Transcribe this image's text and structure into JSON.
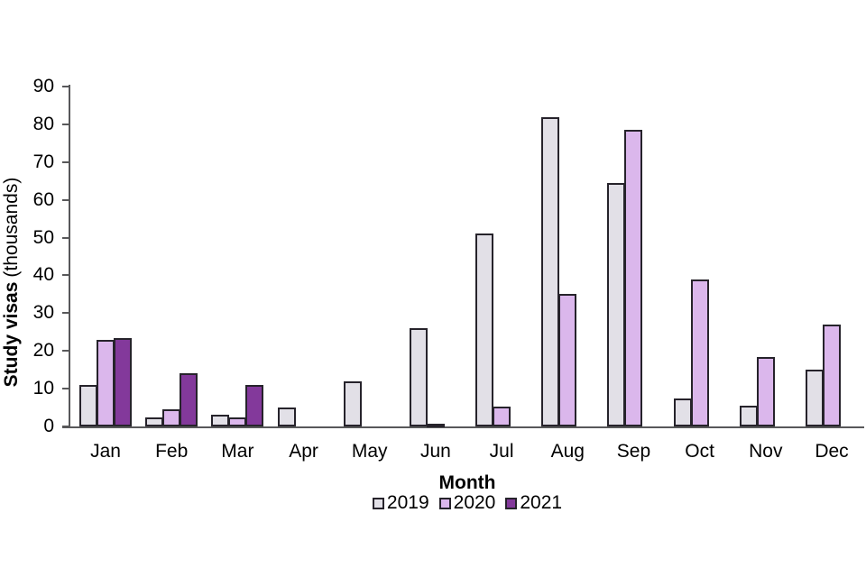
{
  "chart_data": {
    "type": "bar",
    "title": "",
    "categories": [
      "Jan",
      "Feb",
      "Mar",
      "Apr",
      "May",
      "Jun",
      "Jul",
      "Aug",
      "Sep",
      "Oct",
      "Nov",
      "Dec"
    ],
    "series": [
      {
        "name": "2019",
        "color": "#e2e0e7",
        "values": [
          11,
          2.5,
          3,
          5,
          12,
          26,
          51,
          82,
          64.5,
          7.5,
          5.5,
          15
        ]
      },
      {
        "name": "2020",
        "color": "#dbb7ec",
        "values": [
          23,
          4.5,
          2.5,
          null,
          null,
          0.7,
          5.3,
          35,
          78.5,
          39,
          18.5,
          27
        ]
      },
      {
        "name": "2021",
        "color": "#83399b",
        "values": [
          23.5,
          14,
          11,
          null,
          null,
          null,
          null,
          null,
          null,
          null,
          null,
          null
        ]
      }
    ],
    "xlabel": "Month",
    "ylabel_bold": "Study visas",
    "ylabel_regular": "(thousands)",
    "ylim": [
      0,
      90
    ],
    "yticks": [
      0,
      10,
      20,
      30,
      40,
      50,
      60,
      70,
      80,
      90
    ],
    "grid": false,
    "legend_position": "bottom",
    "bar_border_color": "#26232b",
    "axis_color": "#58585a",
    "text_color": "#000000",
    "background_color": "#ffffff"
  }
}
